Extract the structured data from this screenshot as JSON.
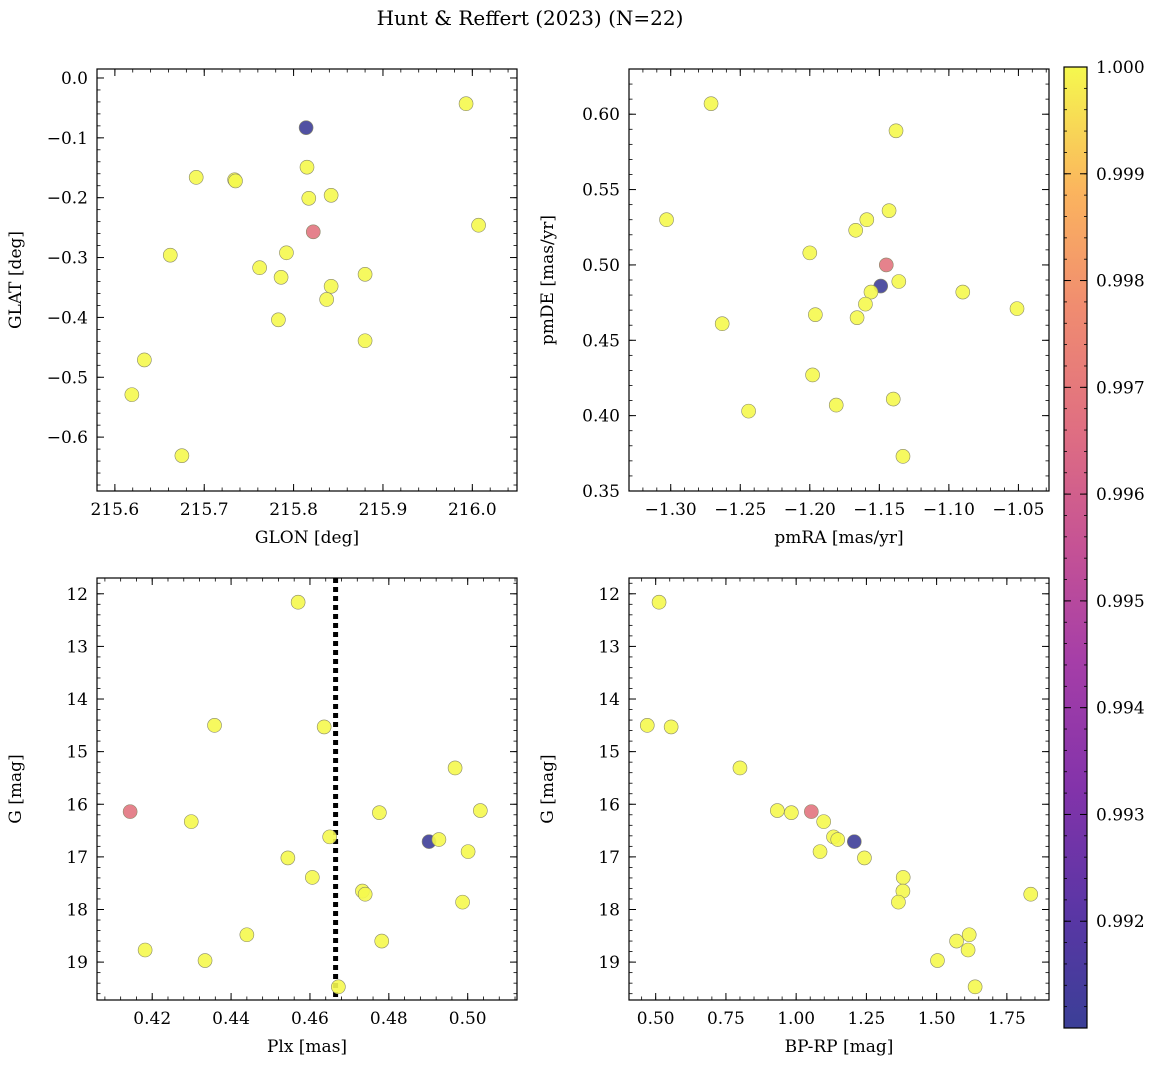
{
  "figure": {
    "title": "Hunt & Reffert (2023) (N=22)"
  },
  "colorbar": {
    "colormap": "plasma",
    "vmin": 0.991,
    "vmax": 1.0,
    "ticks": [
      0.992,
      0.993,
      0.994,
      0.995,
      0.996,
      0.997,
      0.998,
      0.999,
      1.0
    ],
    "tick_labels": [
      "0.992",
      "0.993",
      "0.994",
      "0.995",
      "0.996",
      "0.997",
      "0.998",
      "0.999",
      "1.000"
    ]
  },
  "chart_data": [
    {
      "id": "glon_glat",
      "type": "scatter",
      "xlabel": "GLON [deg]",
      "ylabel": "GLAT [deg]",
      "xlim": [
        215.58,
        216.05
      ],
      "ylim": [
        -0.69,
        0.015
      ],
      "y_inverted": false,
      "grid": false,
      "xticks": [
        215.6,
        215.7,
        215.8,
        215.9,
        216.0
      ],
      "xtick_labels": [
        "215.6",
        "215.7",
        "215.8",
        "215.9",
        "216.0"
      ],
      "yticks": [
        0.0,
        -0.1,
        -0.2,
        -0.3,
        -0.4,
        -0.5,
        -0.6
      ],
      "ytick_labels": [
        "0.0",
        "−0.1",
        "−0.2",
        "−0.3",
        "−0.4",
        "−0.5",
        "−0.6"
      ],
      "points": [
        {
          "x": 215.814,
          "y": -0.083,
          "c": 0.9911
        },
        {
          "x": 215.822,
          "y": -0.257,
          "c": 0.9968
        },
        {
          "x": 215.993,
          "y": -0.043,
          "c": 1.0
        },
        {
          "x": 215.815,
          "y": -0.149,
          "c": 1.0
        },
        {
          "x": 215.691,
          "y": -0.166,
          "c": 1.0
        },
        {
          "x": 215.734,
          "y": -0.17,
          "c": 1.0
        },
        {
          "x": 215.735,
          "y": -0.172,
          "c": 1.0
        },
        {
          "x": 215.817,
          "y": -0.201,
          "c": 1.0
        },
        {
          "x": 215.842,
          "y": -0.196,
          "c": 1.0
        },
        {
          "x": 216.007,
          "y": -0.246,
          "c": 1.0
        },
        {
          "x": 215.662,
          "y": -0.296,
          "c": 1.0
        },
        {
          "x": 215.792,
          "y": -0.292,
          "c": 1.0
        },
        {
          "x": 215.762,
          "y": -0.317,
          "c": 1.0
        },
        {
          "x": 215.786,
          "y": -0.333,
          "c": 1.0
        },
        {
          "x": 215.88,
          "y": -0.328,
          "c": 1.0
        },
        {
          "x": 215.842,
          "y": -0.348,
          "c": 1.0
        },
        {
          "x": 215.837,
          "y": -0.37,
          "c": 1.0
        },
        {
          "x": 215.783,
          "y": -0.404,
          "c": 1.0
        },
        {
          "x": 215.88,
          "y": -0.439,
          "c": 1.0
        },
        {
          "x": 215.633,
          "y": -0.471,
          "c": 1.0
        },
        {
          "x": 215.619,
          "y": -0.529,
          "c": 1.0
        },
        {
          "x": 215.675,
          "y": -0.631,
          "c": 1.0
        }
      ]
    },
    {
      "id": "pm",
      "type": "scatter",
      "xlabel": "pmRA [mas/yr]",
      "ylabel": "pmDE [mas/yr]",
      "xlim": [
        -1.33,
        -1.028
      ],
      "ylim": [
        0.35,
        0.63
      ],
      "y_inverted": false,
      "grid": false,
      "xticks": [
        -1.3,
        -1.25,
        -1.2,
        -1.15,
        -1.1,
        -1.05
      ],
      "xtick_labels": [
        "−1.30",
        "−1.25",
        "−1.20",
        "−1.15",
        "−1.10",
        "−1.05"
      ],
      "yticks": [
        0.35,
        0.4,
        0.45,
        0.5,
        0.55,
        0.6
      ],
      "ytick_labels": [
        "0.35",
        "0.40",
        "0.45",
        "0.50",
        "0.55",
        "0.60"
      ],
      "points": [
        {
          "x": -1.149,
          "y": 0.486,
          "c": 0.9911
        },
        {
          "x": -1.145,
          "y": 0.5,
          "c": 0.9968
        },
        {
          "x": -1.271,
          "y": 0.607,
          "c": 1.0
        },
        {
          "x": -1.138,
          "y": 0.589,
          "c": 1.0
        },
        {
          "x": -1.303,
          "y": 0.53,
          "c": 1.0
        },
        {
          "x": -1.143,
          "y": 0.536,
          "c": 1.0
        },
        {
          "x": -1.159,
          "y": 0.53,
          "c": 1.0
        },
        {
          "x": -1.167,
          "y": 0.523,
          "c": 1.0
        },
        {
          "x": -1.2,
          "y": 0.508,
          "c": 1.0
        },
        {
          "x": -1.136,
          "y": 0.489,
          "c": 1.0
        },
        {
          "x": -1.156,
          "y": 0.482,
          "c": 1.0
        },
        {
          "x": -1.09,
          "y": 0.482,
          "c": 1.0
        },
        {
          "x": -1.16,
          "y": 0.474,
          "c": 1.0
        },
        {
          "x": -1.051,
          "y": 0.471,
          "c": 1.0
        },
        {
          "x": -1.196,
          "y": 0.467,
          "c": 1.0
        },
        {
          "x": -1.166,
          "y": 0.465,
          "c": 1.0
        },
        {
          "x": -1.263,
          "y": 0.461,
          "c": 1.0
        },
        {
          "x": -1.198,
          "y": 0.427,
          "c": 1.0
        },
        {
          "x": -1.14,
          "y": 0.411,
          "c": 1.0
        },
        {
          "x": -1.181,
          "y": 0.407,
          "c": 1.0
        },
        {
          "x": -1.244,
          "y": 0.403,
          "c": 1.0
        },
        {
          "x": -1.133,
          "y": 0.373,
          "c": 1.0
        }
      ]
    },
    {
      "id": "plx_g",
      "type": "scatter",
      "xlabel": "Plx [mas]",
      "ylabel": "G [mag]",
      "xlim": [
        0.406,
        0.5125
      ],
      "ylim": [
        11.7,
        19.72
      ],
      "y_inverted": true,
      "grid": false,
      "reference_line": {
        "x": 0.4665,
        "style": "dotted",
        "color": "#000000"
      },
      "xticks": [
        0.42,
        0.44,
        0.46,
        0.48,
        0.5
      ],
      "xtick_labels": [
        "0.42",
        "0.44",
        "0.46",
        "0.48",
        "0.50"
      ],
      "yticks": [
        12,
        13,
        14,
        15,
        16,
        17,
        18,
        19
      ],
      "ytick_labels": [
        "12",
        "13",
        "14",
        "15",
        "16",
        "17",
        "18",
        "19"
      ],
      "points": [
        {
          "x": 0.4902,
          "y": 16.71,
          "c": 0.9911
        },
        {
          "x": 0.4144,
          "y": 16.14,
          "c": 0.9968
        },
        {
          "x": 0.457,
          "y": 12.16,
          "c": 1.0
        },
        {
          "x": 0.4358,
          "y": 14.5,
          "c": 1.0
        },
        {
          "x": 0.4636,
          "y": 14.53,
          "c": 1.0
        },
        {
          "x": 0.4968,
          "y": 15.31,
          "c": 1.0
        },
        {
          "x": 0.4776,
          "y": 16.16,
          "c": 1.0
        },
        {
          "x": 0.5032,
          "y": 16.12,
          "c": 1.0
        },
        {
          "x": 0.4299,
          "y": 16.33,
          "c": 1.0
        },
        {
          "x": 0.465,
          "y": 16.62,
          "c": 1.0
        },
        {
          "x": 0.4927,
          "y": 16.67,
          "c": 1.0
        },
        {
          "x": 0.5001,
          "y": 16.9,
          "c": 1.0
        },
        {
          "x": 0.4544,
          "y": 17.02,
          "c": 1.0
        },
        {
          "x": 0.4606,
          "y": 17.39,
          "c": 1.0
        },
        {
          "x": 0.4733,
          "y": 17.65,
          "c": 1.0
        },
        {
          "x": 0.474,
          "y": 17.71,
          "c": 1.0
        },
        {
          "x": 0.4987,
          "y": 17.86,
          "c": 1.0
        },
        {
          "x": 0.444,
          "y": 18.48,
          "c": 1.0
        },
        {
          "x": 0.4782,
          "y": 18.6,
          "c": 1.0
        },
        {
          "x": 0.4182,
          "y": 18.77,
          "c": 1.0
        },
        {
          "x": 0.4334,
          "y": 18.97,
          "c": 1.0
        },
        {
          "x": 0.4672,
          "y": 19.47,
          "c": 1.0
        }
      ]
    },
    {
      "id": "cmd",
      "type": "scatter",
      "xlabel": "BP-RP [mag]",
      "ylabel": "G [mag]",
      "xlim": [
        0.405,
        1.9
      ],
      "ylim": [
        11.7,
        19.72
      ],
      "y_inverted": true,
      "grid": false,
      "xticks": [
        0.5,
        0.75,
        1.0,
        1.25,
        1.5,
        1.75
      ],
      "xtick_labels": [
        "0.50",
        "0.75",
        "1.00",
        "1.25",
        "1.50",
        "1.75"
      ],
      "yticks": [
        12,
        13,
        14,
        15,
        16,
        17,
        18,
        19
      ],
      "ytick_labels": [
        "12",
        "13",
        "14",
        "15",
        "16",
        "17",
        "18",
        "19"
      ],
      "points": [
        {
          "x": 1.207,
          "y": 16.71,
          "c": 0.9911
        },
        {
          "x": 1.054,
          "y": 16.14,
          "c": 0.9968
        },
        {
          "x": 0.512,
          "y": 12.16,
          "c": 1.0
        },
        {
          "x": 0.47,
          "y": 14.5,
          "c": 1.0
        },
        {
          "x": 0.555,
          "y": 14.53,
          "c": 1.0
        },
        {
          "x": 0.8,
          "y": 15.31,
          "c": 1.0
        },
        {
          "x": 0.933,
          "y": 16.12,
          "c": 1.0
        },
        {
          "x": 0.983,
          "y": 16.16,
          "c": 1.0
        },
        {
          "x": 1.098,
          "y": 16.33,
          "c": 1.0
        },
        {
          "x": 1.133,
          "y": 16.62,
          "c": 1.0
        },
        {
          "x": 1.148,
          "y": 16.67,
          "c": 1.0
        },
        {
          "x": 1.085,
          "y": 16.9,
          "c": 1.0
        },
        {
          "x": 1.243,
          "y": 17.02,
          "c": 1.0
        },
        {
          "x": 1.381,
          "y": 17.39,
          "c": 1.0
        },
        {
          "x": 1.38,
          "y": 17.65,
          "c": 1.0
        },
        {
          "x": 1.835,
          "y": 17.71,
          "c": 1.0
        },
        {
          "x": 1.364,
          "y": 17.86,
          "c": 1.0
        },
        {
          "x": 1.616,
          "y": 18.48,
          "c": 1.0
        },
        {
          "x": 1.571,
          "y": 18.6,
          "c": 1.0
        },
        {
          "x": 1.612,
          "y": 18.77,
          "c": 1.0
        },
        {
          "x": 1.503,
          "y": 18.97,
          "c": 1.0
        },
        {
          "x": 1.637,
          "y": 19.47,
          "c": 1.0
        }
      ]
    }
  ]
}
